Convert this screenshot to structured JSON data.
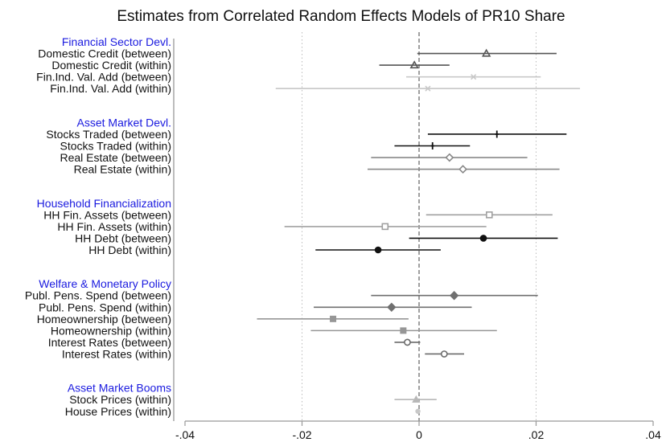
{
  "chart_data": {
    "type": "scatter",
    "subtype": "coefficient plot with confidence intervals",
    "title": "Estimates from Correlated Random Effects Models of PR10 Share",
    "xlabel": "",
    "ylabel": "",
    "xlim": [
      -0.04,
      0.04
    ],
    "xticks": [
      -0.04,
      -0.02,
      0,
      0.02,
      0.04
    ],
    "xtick_labels": [
      "-.04",
      "-.02",
      "0",
      ".02",
      ".04"
    ],
    "vertical_gridlines": [
      -0.02,
      0.02
    ],
    "reference_line": 0,
    "groups": [
      {
        "name": "Financial Sector Devl.",
        "items": [
          {
            "label": "Domestic Credit (between)",
            "estimate": 0.0115,
            "ci": [
              -0.0003,
              0.0235
            ],
            "marker": "triangle",
            "color": "#555555"
          },
          {
            "label": "Domestic Credit (within)",
            "estimate": -0.0008,
            "ci": [
              -0.0068,
              0.0052
            ],
            "marker": "triangle",
            "color": "#555555"
          },
          {
            "label": "Fin.Ind. Val. Add (between)",
            "estimate": 0.0093,
            "ci": [
              -0.0022,
              0.0208
            ],
            "marker": "x",
            "color": "#c8c8c8"
          },
          {
            "label": "Fin.Ind. Val. Add (within)",
            "estimate": 0.0015,
            "ci": [
              -0.0245,
              0.0275
            ],
            "marker": "x",
            "color": "#c8c8c8"
          }
        ]
      },
      {
        "name": "Asset Market Devl.",
        "items": [
          {
            "label": "Stocks Traded (between)",
            "estimate": 0.0133,
            "ci": [
              0.0015,
              0.0252
            ],
            "marker": "plus",
            "color": "#111111"
          },
          {
            "label": "Stocks Traded (within)",
            "estimate": 0.0023,
            "ci": [
              -0.0042,
              0.0087
            ],
            "marker": "plus",
            "color": "#111111"
          },
          {
            "label": "Real Estate (between)",
            "estimate": 0.0052,
            "ci": [
              -0.0082,
              0.0185
            ],
            "marker": "diamond-open",
            "color": "#888888"
          },
          {
            "label": "Real Estate (within)",
            "estimate": 0.0075,
            "ci": [
              -0.0088,
              0.024
            ],
            "marker": "diamond-open",
            "color": "#888888"
          }
        ]
      },
      {
        "name": "Household Financialization",
        "items": [
          {
            "label": "HH Fin. Assets (between)",
            "estimate": 0.012,
            "ci": [
              0.0012,
              0.0228
            ],
            "marker": "square-open",
            "color": "#a0a0a0"
          },
          {
            "label": "HH Fin. Assets (within)",
            "estimate": -0.0058,
            "ci": [
              -0.023,
              0.0115
            ],
            "marker": "square-open",
            "color": "#a0a0a0"
          },
          {
            "label": "HH Debt (between)",
            "estimate": 0.011,
            "ci": [
              -0.0017,
              0.0237
            ],
            "marker": "circle",
            "color": "#111111"
          },
          {
            "label": "HH Debt (within)",
            "estimate": -0.007,
            "ci": [
              -0.0177,
              0.0037
            ],
            "marker": "circle",
            "color": "#111111"
          }
        ]
      },
      {
        "name": "Welfare & Monetary Policy",
        "items": [
          {
            "label": "Publ. Pens. Spend (between)",
            "estimate": 0.006,
            "ci": [
              -0.0082,
              0.0203
            ],
            "marker": "diamond",
            "color": "#707070"
          },
          {
            "label": "Publ. Pens. Spend (within)",
            "estimate": -0.0047,
            "ci": [
              -0.018,
              0.009
            ],
            "marker": "diamond",
            "color": "#707070"
          },
          {
            "label": "Homeownership (between)",
            "estimate": -0.0147,
            "ci": [
              -0.0277,
              -0.0018
            ],
            "marker": "square",
            "color": "#969696"
          },
          {
            "label": "Homeownership (within)",
            "estimate": -0.0027,
            "ci": [
              -0.0185,
              0.0133
            ],
            "marker": "square",
            "color": "#969696"
          },
          {
            "label": "Interest Rates (between)",
            "estimate": -0.002,
            "ci": [
              -0.0042,
              0.0002
            ],
            "marker": "circle-open",
            "color": "#6a6a6a"
          },
          {
            "label": "Interest Rates (within)",
            "estimate": 0.0043,
            "ci": [
              0.001,
              0.0077
            ],
            "marker": "circle-open",
            "color": "#6a6a6a"
          }
        ]
      },
      {
        "name": "Asset Market Booms",
        "items": [
          {
            "label": "Stock Prices (within)",
            "estimate": -0.0005,
            "ci": [
              -0.0042,
              0.003
            ],
            "marker": "triangle-filled",
            "color": "#b8b8b8"
          },
          {
            "label": "House Prices (within)",
            "estimate": -0.0002,
            "ci": [
              -0.0005,
              0.0001
            ],
            "marker": "circle-small",
            "color": "#c8c8c8"
          }
        ]
      }
    ]
  }
}
